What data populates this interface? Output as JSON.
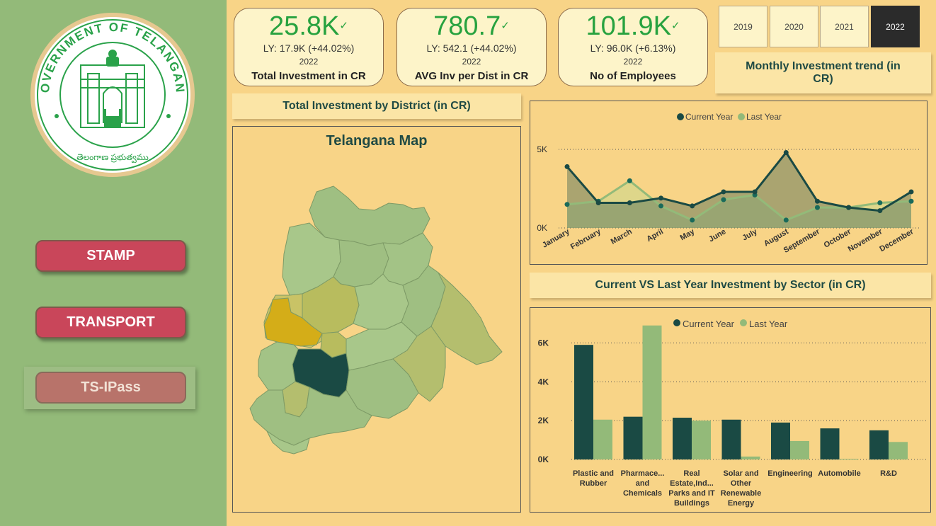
{
  "sidebar": {
    "logo": {
      "ring_text": "GOVERNMENT OF TELANGANA",
      "bottom_text": "తెలంగాణ ప్రభుత్వము"
    },
    "buttons": {
      "stamp": "STAMP",
      "transport": "TRANSPORT",
      "ipass": "TS-IPass"
    }
  },
  "kpis": [
    {
      "value": "25.8K",
      "ly": "LY: 17.9K (+44.02%)",
      "year": "2022",
      "title": "Total Investment in CR"
    },
    {
      "value": "780.7",
      "ly": "LY: 542.1 (+44.02%)",
      "year": "2022",
      "title": "AVG Inv per Dist in CR"
    },
    {
      "value": "101.9K",
      "ly": "LY: 96.0K (+6.13%)",
      "year": "2022",
      "title": "No of Employees"
    }
  ],
  "year_slicer": {
    "options": [
      "2019",
      "2020",
      "2021",
      "2022"
    ],
    "selected": "2022"
  },
  "labels": {
    "district": "Total Investment by District (in CR)",
    "monthly": "Monthly Investment trend (in CR)",
    "sector": "Current VS Last Year Investment by Sector (in CR)"
  },
  "map": {
    "title": "Telangana Map"
  },
  "colors": {
    "current_year": "#1a4a44",
    "last_year": "#93ba79",
    "sidebar": "#93ba79",
    "background": "#f8d487",
    "kpi_green": "#27a23f",
    "nav_red": "#c9465a"
  },
  "chart_data": [
    {
      "type": "line",
      "legend": [
        "Current Year",
        "Last Year"
      ],
      "legend_position": "top-center",
      "categories": [
        "January",
        "February",
        "March",
        "April",
        "May",
        "June",
        "July",
        "August",
        "September",
        "October",
        "November",
        "December"
      ],
      "series": [
        {
          "name": "Current Year",
          "values": [
            3900,
            1600,
            1600,
            1900,
            1400,
            2300,
            2300,
            4800,
            1700,
            1300,
            1100,
            2300
          ]
        },
        {
          "name": "Last Year",
          "values": [
            1500,
            1700,
            3000,
            1400,
            500,
            1800,
            2100,
            500,
            1300,
            1300,
            1600,
            1700
          ]
        }
      ],
      "y_ticks": [
        "0K",
        "5K"
      ],
      "ylim": [
        0,
        5000
      ],
      "grid": true
    },
    {
      "type": "bar",
      "legend": [
        "Current Year",
        "Last Year"
      ],
      "legend_position": "top-center",
      "categories": [
        "Plastic and Rubber",
        "Pharmace... and Chemicals",
        "Real Estate,Ind... Parks and IT Buildings",
        "Solar and Other Renewable Energy",
        "Engineering",
        "Automobile",
        "R&D"
      ],
      "series": [
        {
          "name": "Current Year",
          "values": [
            5900,
            2200,
            2150,
            2050,
            1900,
            1600,
            1500
          ]
        },
        {
          "name": "Last Year",
          "values": [
            2050,
            6900,
            2000,
            150,
            950,
            30,
            900
          ]
        }
      ],
      "y_ticks": [
        "0K",
        "2K",
        "4K",
        "6K"
      ],
      "ylim": [
        0,
        7000
      ],
      "grid": true
    }
  ]
}
